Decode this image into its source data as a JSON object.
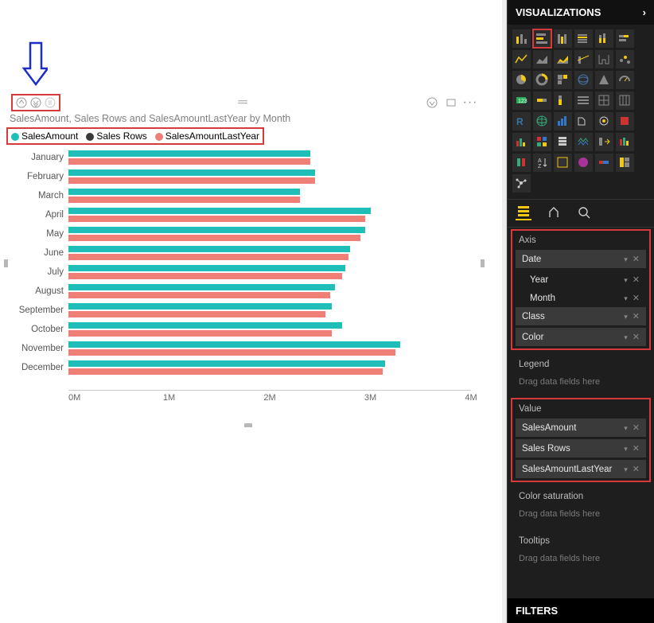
{
  "colors": {
    "series1": "#1fbfb8",
    "series2": "#3a3a3a",
    "series3": "#f07f78",
    "annot_border": "#d8393a",
    "arrow": "#1a2fc7"
  },
  "chart": {
    "type": "bar-horizontal-clustered",
    "title": "SalesAmount, Sales Rows and SalesAmountLastYear by Month",
    "legend": [
      {
        "label": "SalesAmount",
        "color": "#1fbfb8"
      },
      {
        "label": "Sales Rows",
        "color": "#3a3a3a"
      },
      {
        "label": "SalesAmountLastYear",
        "color": "#f07f78"
      }
    ],
    "categories": [
      "January",
      "February",
      "March",
      "April",
      "May",
      "June",
      "July",
      "August",
      "September",
      "October",
      "November",
      "December"
    ],
    "series": {
      "SalesAmount": [
        2.4,
        2.45,
        2.3,
        3.0,
        2.95,
        2.8,
        2.75,
        2.65,
        2.62,
        2.72,
        3.3,
        3.15
      ],
      "SalesAmountLastYear": [
        2.4,
        2.45,
        2.3,
        2.95,
        2.9,
        2.78,
        2.72,
        2.6,
        2.55,
        2.62,
        3.25,
        3.12
      ]
    },
    "x_ticks": [
      "0M",
      "1M",
      "2M",
      "3M",
      "4M"
    ],
    "xlim": [
      0,
      4
    ]
  },
  "panel": {
    "header": "VISUALIZATIONS",
    "filters": "FILTERS",
    "selected_icon_index": 1,
    "wells": {
      "axis": {
        "title": "Axis",
        "fields": [
          {
            "label": "Date",
            "children": [
              "Year",
              "Month"
            ]
          },
          {
            "label": "Class"
          },
          {
            "label": "Color"
          }
        ]
      },
      "legend": {
        "title": "Legend",
        "placeholder": "Drag data fields here"
      },
      "value": {
        "title": "Value",
        "fields": [
          {
            "label": "SalesAmount"
          },
          {
            "label": "Sales Rows"
          },
          {
            "label": "SalesAmountLastYear"
          }
        ]
      },
      "sat": {
        "title": "Color saturation",
        "placeholder": "Drag data fields here"
      },
      "tooltips": {
        "title": "Tooltips",
        "placeholder": "Drag data fields here"
      }
    }
  }
}
